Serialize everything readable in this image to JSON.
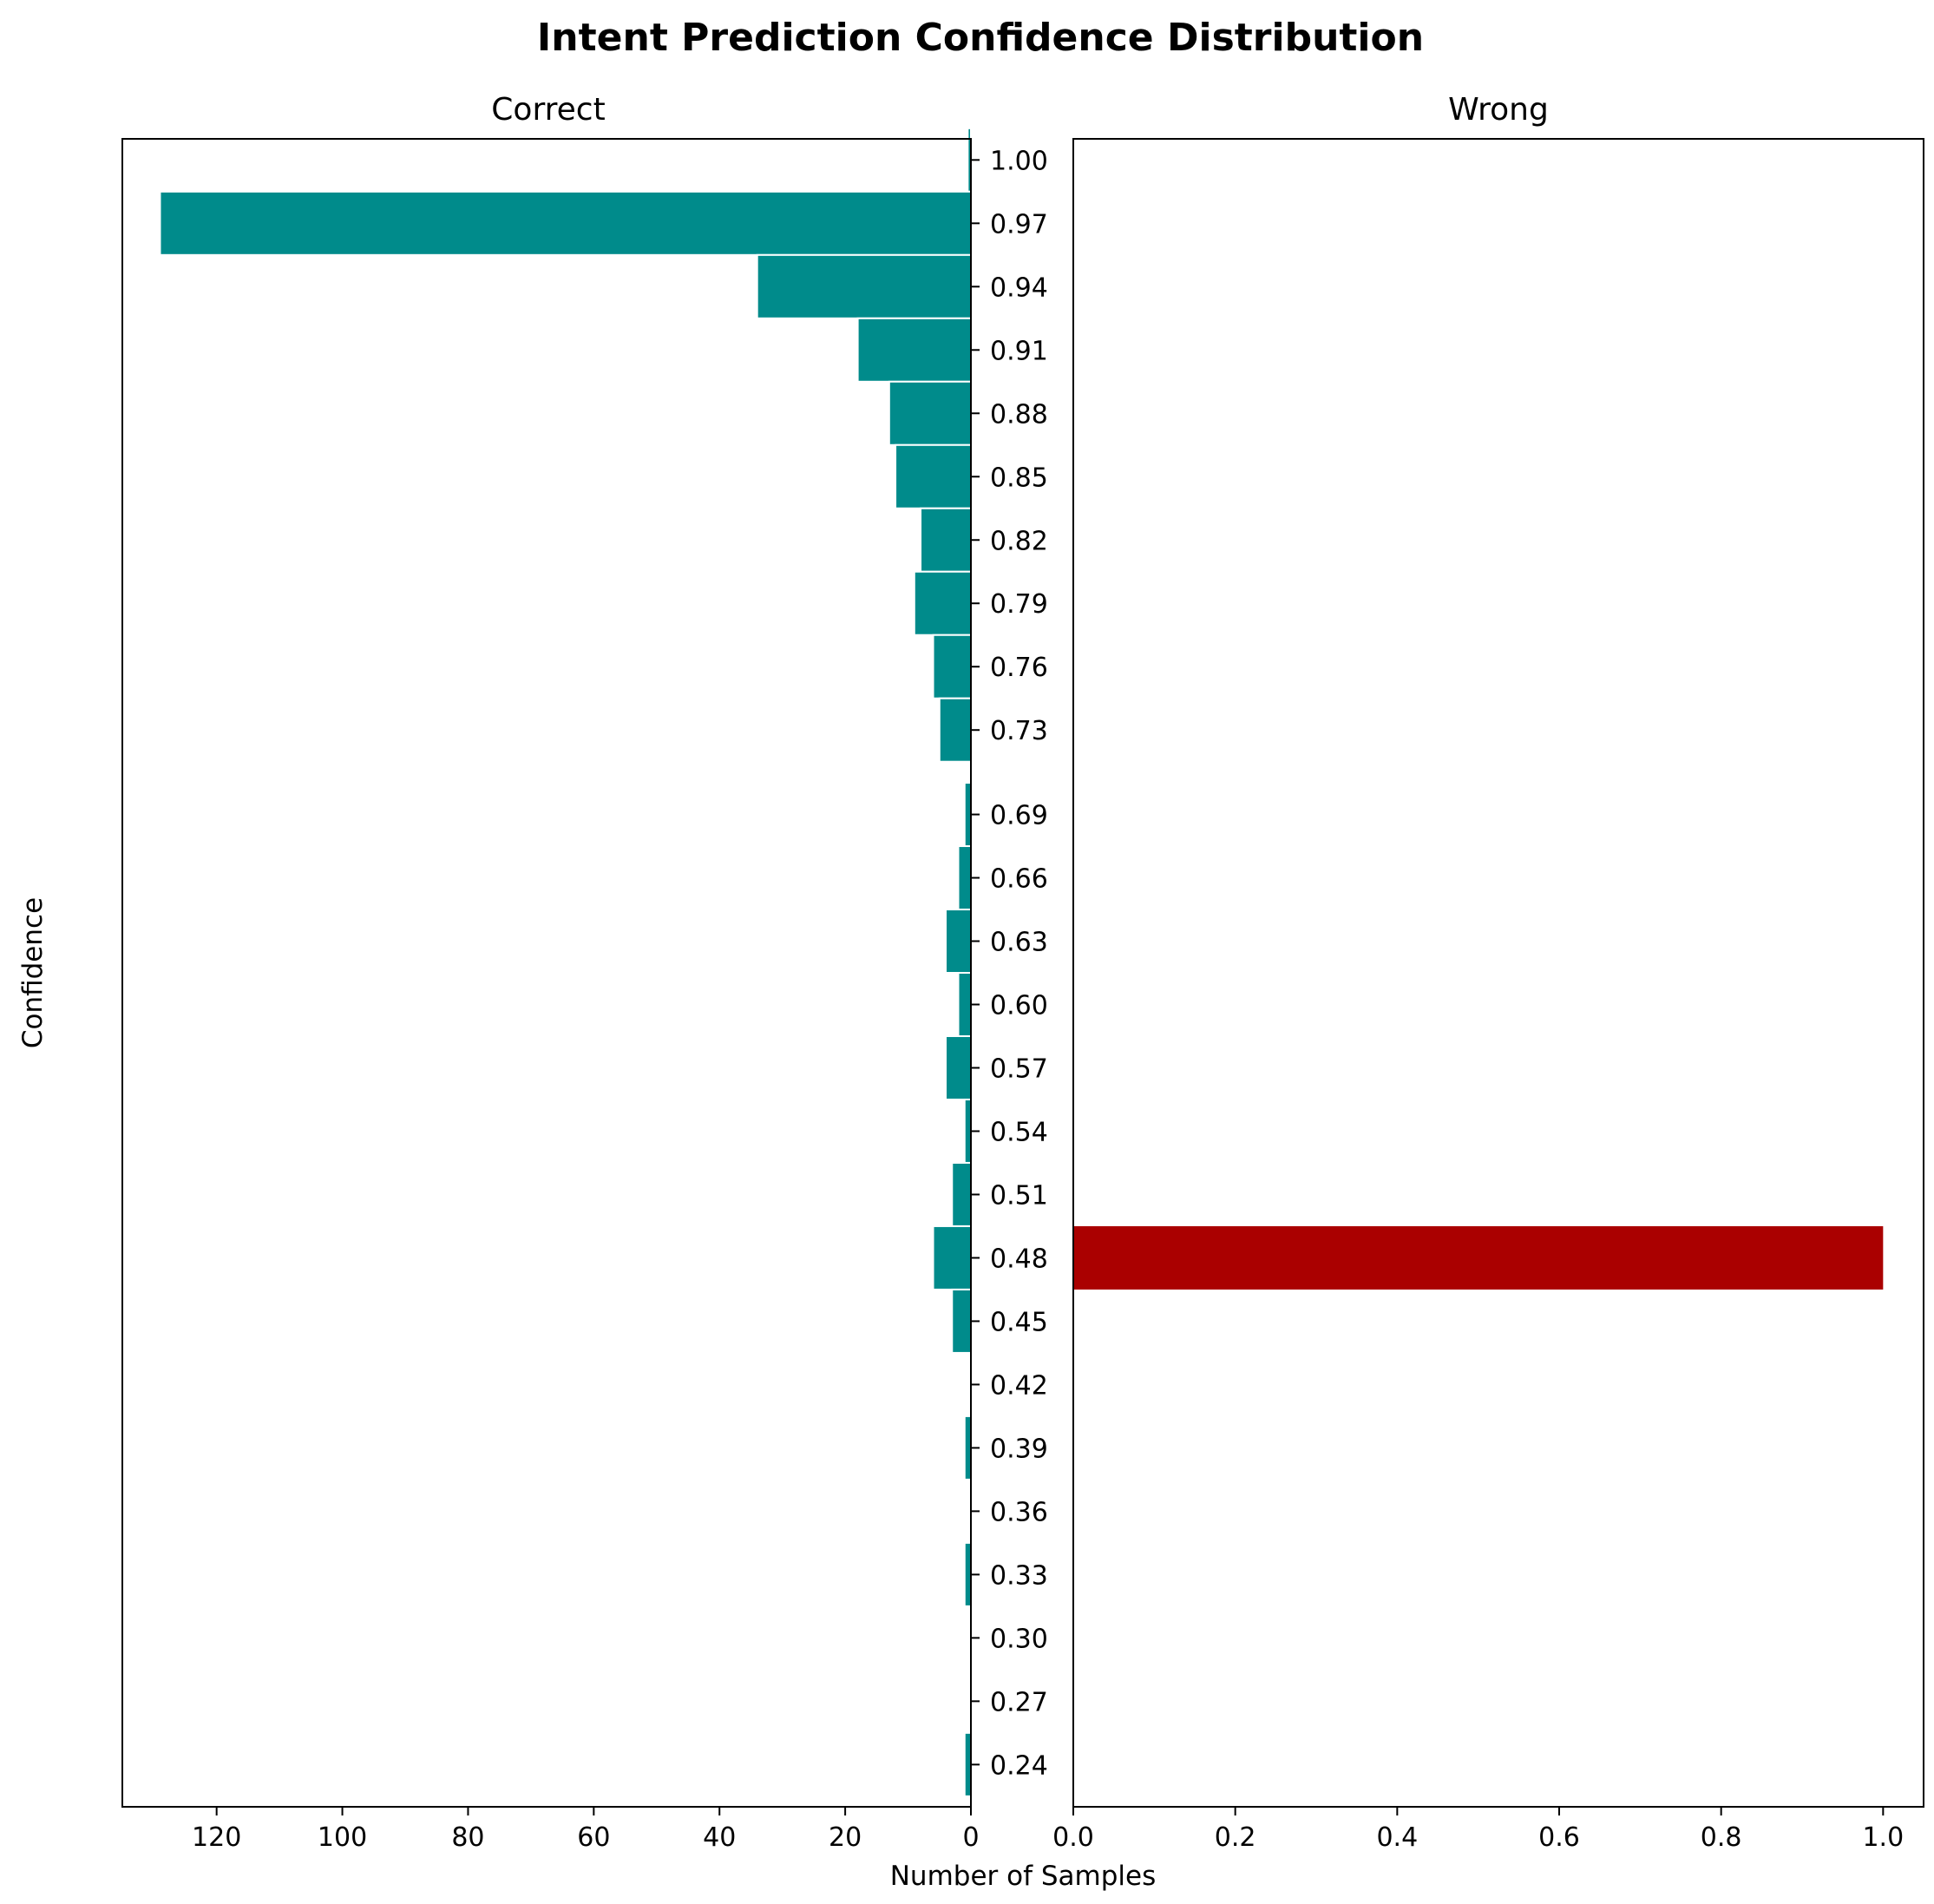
{
  "chart_data": [
    {
      "type": "bar",
      "orientation": "horizontal",
      "title": "Correct",
      "xlabel": "Number of Samples",
      "ylabel": "Confidence",
      "x_inverted": true,
      "xlim": [
        135,
        0
      ],
      "xticks": [
        120,
        100,
        80,
        60,
        40,
        20,
        0
      ],
      "ylim": [
        0.22,
        1.01
      ],
      "color": "#008b8b",
      "edge_color": "#ffffff",
      "categories": [
        "1.00",
        "0.97",
        "0.94",
        "0.91",
        "0.88",
        "0.85",
        "0.82",
        "0.79",
        "0.76",
        "0.73",
        "0.69",
        "0.66",
        "0.63",
        "0.60",
        "0.57",
        "0.54",
        "0.51",
        "0.48",
        "0.45",
        "0.42",
        "0.39",
        "0.36",
        "0.33",
        "0.30",
        "0.27",
        "0.24"
      ],
      "values": [
        0.5,
        129,
        34,
        18,
        13,
        12,
        8,
        9,
        6,
        5,
        1,
        2,
        4,
        2,
        4,
        1,
        3,
        6,
        3,
        0,
        1,
        0,
        1,
        0,
        0,
        1
      ]
    },
    {
      "type": "bar",
      "orientation": "horizontal",
      "title": "Wrong",
      "xlim": [
        0,
        1.05
      ],
      "xticks": [
        "0.0",
        "0.2",
        "0.4",
        "0.6",
        "0.8",
        "1.0"
      ],
      "ylim": [
        0.22,
        1.01
      ],
      "color": "#aa0000",
      "categories": [
        "0.48"
      ],
      "values": [
        1
      ]
    }
  ],
  "figure": {
    "suptitle": "Intent Prediction Confidence Distribution",
    "shared_ylabel": "Confidence",
    "shared_xlabel": "Number of Samples",
    "y_ticks": [
      "1.00",
      "0.97",
      "0.94",
      "0.91",
      "0.88",
      "0.85",
      "0.82",
      "0.79",
      "0.76",
      "0.73",
      "0.69",
      "0.66",
      "0.63",
      "0.60",
      "0.57",
      "0.54",
      "0.51",
      "0.48",
      "0.45",
      "0.42",
      "0.39",
      "0.36",
      "0.33",
      "0.30",
      "0.27",
      "0.24"
    ]
  }
}
